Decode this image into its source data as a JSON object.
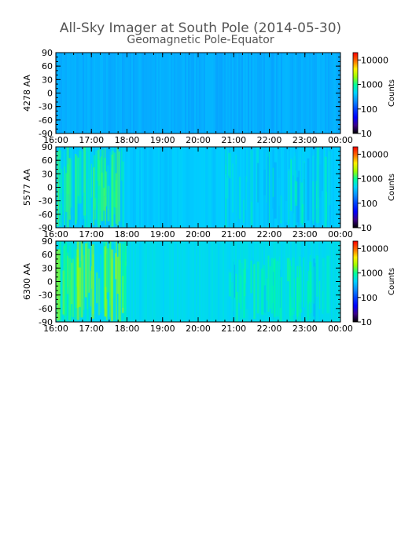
{
  "title": "All-Sky Imager at South Pole (2014-05-30)",
  "subtitle": "Geomagnetic Pole-Equator",
  "colors": {
    "background": "#ffffff",
    "text": "#000000",
    "title_text": "#555555",
    "colormap": [
      "#000000",
      "#3a008a",
      "#0000ff",
      "#0040ff",
      "#0a8cff",
      "#00d2ff",
      "#00ff9c",
      "#9bff00",
      "#ffee00",
      "#ff6a00",
      "#ff0000"
    ]
  },
  "chart_data": [
    {
      "type": "heatmap",
      "ylabel": "4278 AA",
      "x_ticks": [
        "16:00",
        "17:00",
        "18:00",
        "19:00",
        "20:00",
        "21:00",
        "22:00",
        "23:00",
        "00:00"
      ],
      "xlim": [
        "16:00",
        "00:00"
      ],
      "y_ticks": [
        90,
        60,
        30,
        0,
        -30,
        -60,
        -90
      ],
      "ylim": [
        -90,
        90
      ],
      "colorbar": {
        "label": "Counts",
        "scale": "log",
        "ticks": [
          "10",
          "100",
          "1000",
          "10000"
        ],
        "range": [
          10,
          20000
        ]
      },
      "background_counts": 300,
      "features": []
    },
    {
      "type": "heatmap",
      "ylabel": "5577 AA",
      "x_ticks": [
        "16:00",
        "17:00",
        "18:00",
        "19:00",
        "20:00",
        "21:00",
        "22:00",
        "23:00",
        "00:00"
      ],
      "xlim": [
        "16:00",
        "00:00"
      ],
      "y_ticks": [
        90,
        60,
        30,
        0,
        -30,
        -60,
        -90
      ],
      "ylim": [
        -90,
        90
      ],
      "colorbar": {
        "label": "Counts",
        "scale": "log",
        "ticks": [
          "10",
          "100",
          "1000",
          "10000"
        ],
        "range": [
          10,
          20000
        ]
      },
      "background_counts": 400,
      "features": [
        {
          "t_start": "16:00",
          "t_end": "17:55",
          "lat_min": -90,
          "lat_max": 90,
          "peak_counts": 1500
        },
        {
          "t_start": "20:45",
          "t_end": "23:45",
          "lat_min": -90,
          "lat_max": 90,
          "peak_counts": 1000
        }
      ]
    },
    {
      "type": "heatmap",
      "ylabel": "6300 AA",
      "x_ticks": [
        "16:00",
        "17:00",
        "18:00",
        "19:00",
        "20:00",
        "21:00",
        "22:00",
        "23:00",
        "00:00"
      ],
      "xlim": [
        "16:00",
        "00:00"
      ],
      "y_ticks": [
        90,
        60,
        30,
        0,
        -30,
        -60,
        -90
      ],
      "ylim": [
        -90,
        90
      ],
      "colorbar": {
        "label": "Counts",
        "scale": "log",
        "ticks": [
          "10",
          "100",
          "1000",
          "10000"
        ],
        "range": [
          10,
          20000
        ]
      },
      "background_counts": 500,
      "features": [
        {
          "t_start": "16:00",
          "t_end": "18:00",
          "lat_min": -90,
          "lat_max": 90,
          "peak_counts": 2500
        },
        {
          "t_start": "20:50",
          "t_end": "23:40",
          "lat_min": -90,
          "lat_max": 60,
          "peak_counts": 1100
        }
      ]
    }
  ]
}
